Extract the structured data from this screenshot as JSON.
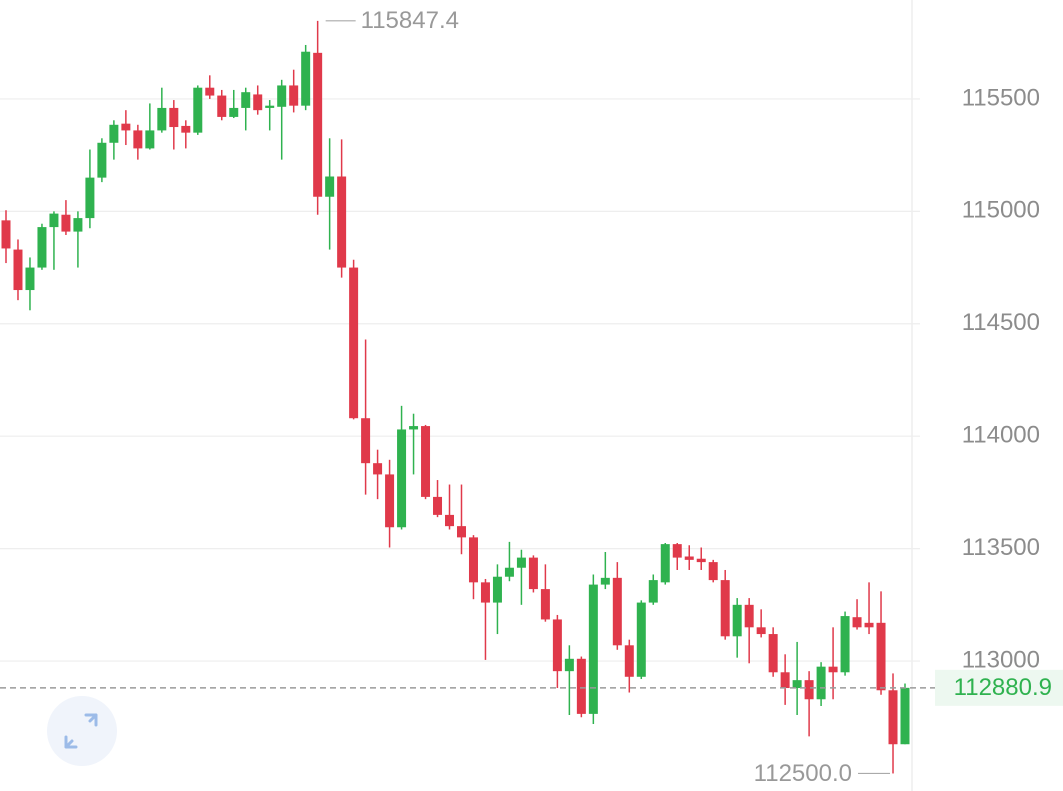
{
  "chart_data": {
    "type": "candlestick",
    "open": [
      114960,
      114830,
      114650,
      114750,
      114930,
      114985,
      114910,
      114970,
      115150,
      115305,
      115390,
      115360,
      115280,
      115360,
      115460,
      115380,
      115350,
      115550,
      115515,
      115420,
      115460,
      115520,
      115460,
      115465,
      115560,
      115470,
      115705,
      115065,
      115155,
      114750,
      114080,
      113880,
      113830,
      113595,
      114030,
      114045,
      113730,
      113650,
      113600,
      113550,
      113350,
      113260,
      113375,
      113415,
      113460,
      113320,
      113185,
      112955,
      113010,
      112765,
      113340,
      113370,
      113070,
      112930,
      113260,
      113350,
      113520,
      113465,
      113455,
      113440,
      113360,
      113110,
      113250,
      113150,
      113120,
      112950,
      112880,
      112915,
      112830,
      112975,
      112950,
      113195,
      113170,
      113170,
      112870,
      112630
    ],
    "high": [
      115005,
      114875,
      114795,
      114945,
      115000,
      115050,
      115000,
      115275,
      115325,
      115405,
      115450,
      115385,
      115480,
      115550,
      115495,
      115405,
      115560,
      115605,
      115540,
      115540,
      115550,
      115560,
      115495,
      115585,
      115630,
      115740,
      115847.4,
      115325,
      115320,
      114785,
      114430,
      113940,
      113895,
      114135,
      114100,
      114050,
      113805,
      113785,
      113785,
      113560,
      113365,
      113430,
      113530,
      113495,
      113470,
      113430,
      113205,
      113070,
      113020,
      113385,
      113485,
      113440,
      113095,
      113270,
      113385,
      113525,
      113525,
      113515,
      113505,
      113450,
      113405,
      113280,
      113280,
      113230,
      113150,
      113030,
      113085,
      112955,
      112995,
      113150,
      113220,
      113275,
      113350,
      113310,
      112945,
      112900
    ],
    "low": [
      114770,
      114605,
      114560,
      114740,
      114740,
      114895,
      114750,
      114925,
      115130,
      115230,
      115295,
      115230,
      115275,
      115350,
      115275,
      115280,
      115340,
      115500,
      115405,
      115415,
      115360,
      115430,
      115360,
      115230,
      115440,
      115450,
      114985,
      114830,
      114705,
      114075,
      113740,
      113720,
      113505,
      113585,
      113830,
      113720,
      113640,
      113585,
      113475,
      113275,
      113005,
      113120,
      113355,
      113250,
      113305,
      113175,
      112880,
      112760,
      112750,
      112720,
      113320,
      113050,
      112860,
      112920,
      113250,
      113340,
      113405,
      113405,
      113405,
      113350,
      113095,
      113015,
      112990,
      113105,
      112930,
      112805,
      112760,
      112665,
      112800,
      112830,
      112935,
      113140,
      113120,
      112850,
      112500,
      112630
    ],
    "close": [
      114835,
      114650,
      114750,
      114930,
      114990,
      114910,
      114970,
      115150,
      115305,
      115385,
      115360,
      115280,
      115360,
      115460,
      115375,
      115350,
      115550,
      115515,
      115420,
      115460,
      115530,
      115450,
      115470,
      115560,
      115470,
      115710,
      115065,
      115155,
      114750,
      114080,
      113880,
      113830,
      113595,
      114030,
      114045,
      113730,
      113650,
      113600,
      113550,
      113350,
      113260,
      113375,
      113415,
      113460,
      113320,
      113185,
      112955,
      113010,
      112765,
      113340,
      113370,
      113070,
      112930,
      113260,
      113360,
      113520,
      113460,
      113450,
      113440,
      113360,
      113110,
      113250,
      113150,
      113120,
      112950,
      112880,
      112915,
      112830,
      112975,
      112950,
      113200,
      113150,
      113150,
      112870,
      112630,
      112880.9
    ],
    "up_color": "#2fb24f",
    "down_color": "#e0394a",
    "ylim": [
      112422,
      115940
    ],
    "yticks": [
      113000,
      113500,
      114000,
      114500,
      115000,
      115500
    ],
    "grid": true,
    "last_price": 112880.9,
    "max_label": 115847.4,
    "min_label": {
      "value": 112500,
      "label": "112500.0"
    }
  }
}
